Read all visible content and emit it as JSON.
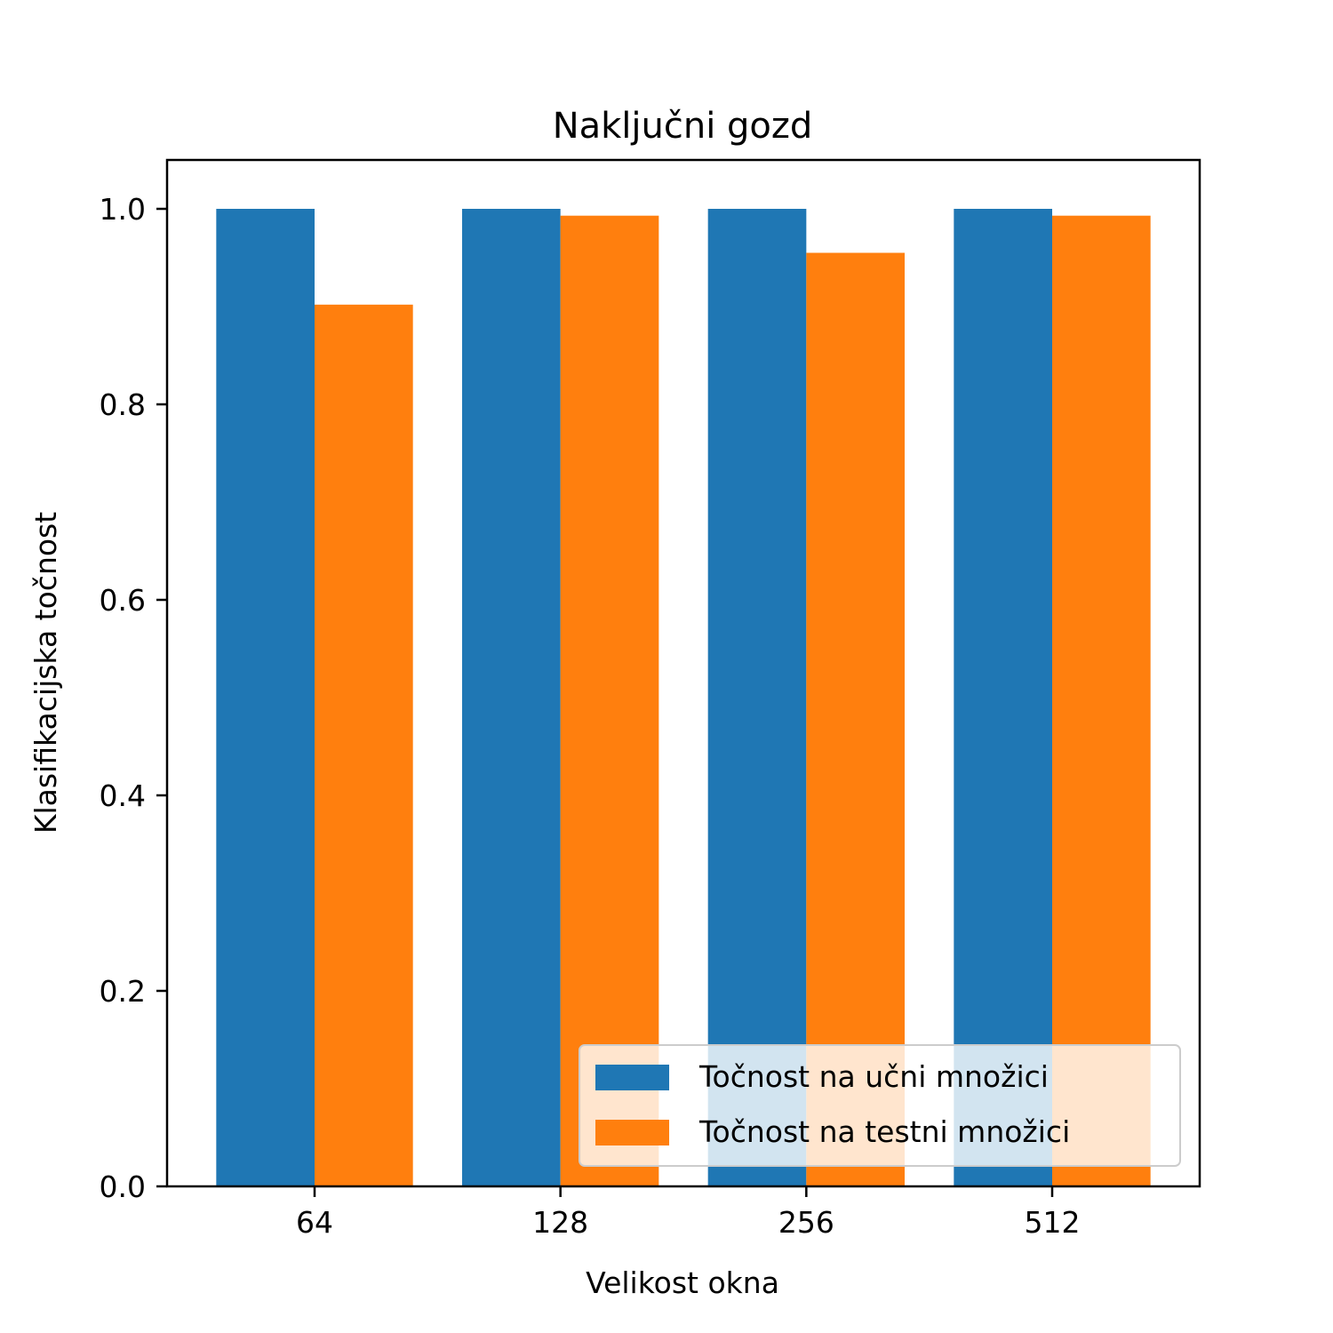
{
  "chart_data": {
    "type": "bar",
    "title": "Naključni gozd",
    "xlabel": "Velikost okna",
    "ylabel": "Klasifikacijska točnost",
    "categories": [
      "64",
      "128",
      "256",
      "512"
    ],
    "series": [
      {
        "name": "Točnost na učni množici",
        "color": "#1f77b4",
        "values": [
          1.0,
          1.0,
          1.0,
          1.0
        ]
      },
      {
        "name": "Točnost na testni množici",
        "color": "#ff7f0e",
        "values": [
          0.902,
          0.993,
          0.955,
          0.993
        ]
      }
    ],
    "ylim": [
      0,
      1.05
    ],
    "yticks": [
      "0.0",
      "0.2",
      "0.4",
      "0.6",
      "0.8",
      "1.0"
    ],
    "grid": false,
    "legend": "bottom-right"
  }
}
